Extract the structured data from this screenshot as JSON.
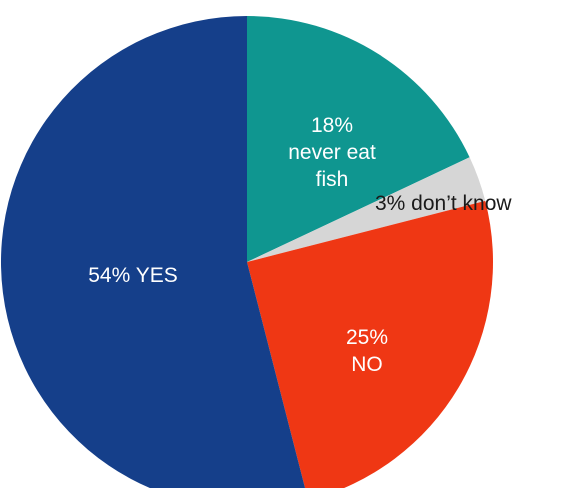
{
  "chart_data": {
    "type": "pie",
    "start": "12 o'clock",
    "direction": "clockwise",
    "slices": [
      {
        "value": 18,
        "label_lines": [
          "18%",
          "never eat",
          "fish"
        ],
        "color": "#0f9690",
        "label_color": "#ffffff"
      },
      {
        "value": 3,
        "label_lines": [
          "3% don’t know"
        ],
        "color": "#d6d6d6",
        "label_color": "#1a1a1a"
      },
      {
        "value": 25,
        "label_lines": [
          "25%",
          "NO"
        ],
        "color": "#ef3714",
        "label_color": "#ffffff"
      },
      {
        "value": 54,
        "label_lines": [
          "54% YES"
        ],
        "color": "#153f8a",
        "label_color": "#ffffff"
      }
    ]
  }
}
